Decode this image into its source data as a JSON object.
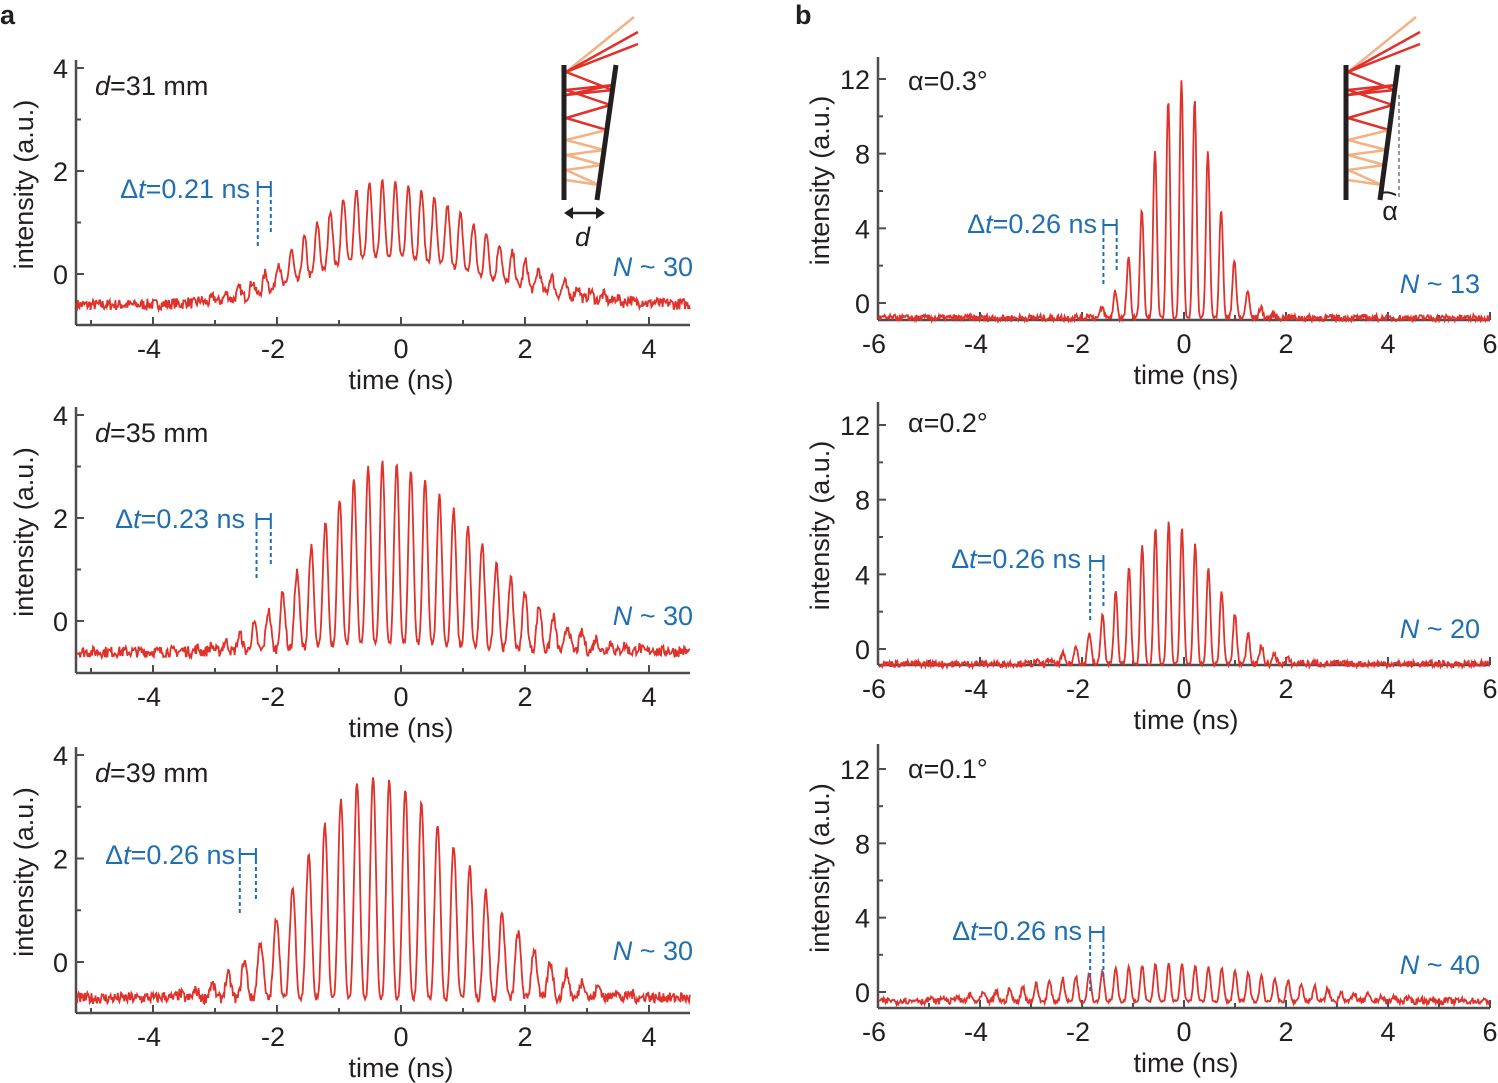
{
  "panel_letters": [
    "a",
    "b"
  ],
  "colors": {
    "signal": "#e0312b",
    "annotation": "#1f6fb2",
    "axis": "#4d4d4d",
    "ray_light": "#f4b183",
    "ray_red": "#e0312b"
  },
  "inset_a": {
    "symbol": "d"
  },
  "inset_b": {
    "symbol": "α"
  },
  "chart_data": [
    {
      "type": "line",
      "panel": "a",
      "xlabel": "time (ns)",
      "ylabel": "intensity (a.u.)",
      "xlim": [
        -5.2,
        4.7
      ],
      "ylim": [
        -1,
        4
      ],
      "xticks": [
        "-4",
        "-2",
        "0",
        "2",
        "4"
      ],
      "yticks": [
        "0",
        "2",
        "4"
      ],
      "label_var": "d",
      "label_value": "=31 mm",
      "dt_prefix": "Δ",
      "dt_var": "t",
      "dt_value": "=0.21 ns",
      "n_var": "N",
      "n_value": " ~ 30",
      "series": {
        "period_ns": 0.21,
        "envelope_center_ns": -0.3,
        "sigma_left_ns": 1.15,
        "sigma_right_ns": 1.6,
        "baseline": -0.6,
        "peak": 1.8,
        "modulation_depth": 0.6
      }
    },
    {
      "type": "line",
      "panel": "a",
      "xlabel": "time (ns)",
      "ylabel": "intensity (a.u.)",
      "xlim": [
        -5.2,
        4.7
      ],
      "ylim": [
        -1,
        4
      ],
      "xticks": [
        "-4",
        "-2",
        "0",
        "2",
        "4"
      ],
      "yticks": [
        "0",
        "2",
        "4"
      ],
      "label_var": "d",
      "label_value": "=35 mm",
      "dt_prefix": "Δ",
      "dt_var": "t",
      "dt_value": "=0.23 ns",
      "n_var": "N",
      "n_value": " ~ 30",
      "series": {
        "period_ns": 0.23,
        "envelope_center_ns": -0.3,
        "sigma_left_ns": 1.05,
        "sigma_right_ns": 1.5,
        "baseline": -0.6,
        "peak": 3.1,
        "modulation_depth": 0.95
      }
    },
    {
      "type": "line",
      "panel": "a",
      "xlabel": "time (ns)",
      "ylabel": "intensity (a.u.)",
      "xlim": [
        -5.2,
        4.7
      ],
      "ylim": [
        -1,
        4
      ],
      "xticks": [
        "-4",
        "-2",
        "0",
        "2",
        "4"
      ],
      "yticks": [
        "0",
        "2",
        "4"
      ],
      "label_var": "d",
      "label_value": "=39 mm",
      "dt_prefix": "Δ",
      "dt_var": "t",
      "dt_value": "=0.26 ns",
      "n_var": "N",
      "n_value": " ~ 30",
      "series": {
        "period_ns": 0.26,
        "envelope_center_ns": -0.45,
        "sigma_left_ns": 1.1,
        "sigma_right_ns": 1.5,
        "baseline": -0.7,
        "peak": 3.6,
        "modulation_depth": 1.0
      }
    },
    {
      "type": "line",
      "panel": "b",
      "xlabel": "time (ns)",
      "ylabel": "intensity (a.u.)",
      "xlim": [
        -6,
        6
      ],
      "ylim": [
        -0.9,
        12.8
      ],
      "xticks": [
        "-6",
        "-4",
        "-2",
        "0",
        "2",
        "4",
        "6"
      ],
      "yticks": [
        "0",
        "4",
        "8",
        "12"
      ],
      "label_var": "α",
      "label_value": "=0.3°",
      "dt_prefix": "Δ",
      "dt_var": "t",
      "dt_value": "=0.26 ns",
      "n_var": "N",
      "n_value": " ~ 13",
      "series": {
        "period_ns": 0.26,
        "envelope_center_ns": -0.05,
        "sigma_left_ns": 0.62,
        "sigma_right_ns": 0.62,
        "baseline": -0.8,
        "peak": 12,
        "modulation_depth": 1.0
      }
    },
    {
      "type": "line",
      "panel": "b",
      "xlabel": "time (ns)",
      "ylabel": "intensity (a.u.)",
      "xlim": [
        -6,
        6
      ],
      "ylim": [
        -0.9,
        12.8
      ],
      "xticks": [
        "-6",
        "-4",
        "-2",
        "0",
        "2",
        "4",
        "6"
      ],
      "yticks": [
        "0",
        "4",
        "8",
        "12"
      ],
      "label_var": "α",
      "label_value": "=0.2°",
      "dt_prefix": "Δ",
      "dt_var": "t",
      "dt_value": "=0.26 ns",
      "n_var": "N",
      "n_value": " ~ 20",
      "series": {
        "period_ns": 0.26,
        "envelope_center_ns": -0.3,
        "sigma_left_ns": 0.9,
        "sigma_right_ns": 0.9,
        "baseline": -0.8,
        "peak": 6.8,
        "modulation_depth": 1.0
      }
    },
    {
      "type": "line",
      "panel": "b",
      "xlabel": "time (ns)",
      "ylabel": "intensity (a.u.)",
      "xlim": [
        -6,
        6
      ],
      "ylim": [
        -0.9,
        12.8
      ],
      "xticks": [
        "-6",
        "-4",
        "-2",
        "0",
        "2",
        "4",
        "6"
      ],
      "yticks": [
        "0",
        "4",
        "8",
        "12"
      ],
      "label_var": "α",
      "label_value": "=0.1°",
      "dt_prefix": "Δ",
      "dt_var": "t",
      "dt_value": "=0.26 ns",
      "n_var": "N",
      "n_value": " ~ 40",
      "series": {
        "period_ns": 0.26,
        "envelope_center_ns": -0.3,
        "sigma_left_ns": 2.1,
        "sigma_right_ns": 2.1,
        "baseline": -0.5,
        "peak": 1.5,
        "modulation_depth": 1.0
      }
    }
  ]
}
